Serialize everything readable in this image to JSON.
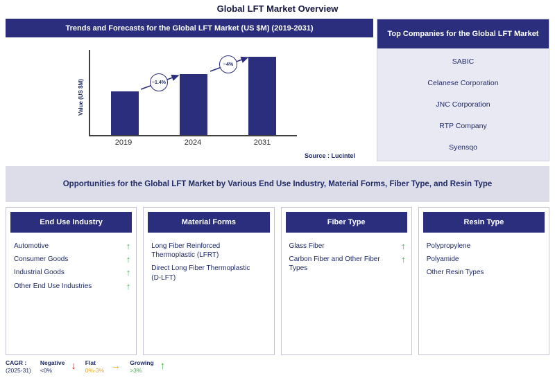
{
  "page": {
    "title": "Global LFT Market Overview",
    "source_note": "Source : Lucintel"
  },
  "colors": {
    "navy": "#2b2d7d",
    "text_navy": "#1f2a66",
    "panel_lavender": "#e9e9f4",
    "banner_gray": "#dcdde8",
    "growing_green": "#3cb44a",
    "negative_red": "#d42a1e",
    "flat_orange": "#f0a81e"
  },
  "icons": {
    "up_arrow": "↑",
    "down_arrow": "↓",
    "right_arrow": "→"
  },
  "trends_panel": {
    "header": "Trends and Forecasts for the Global LFT Market (US $M) (2019-2031)"
  },
  "chart_data": {
    "type": "bar",
    "title": "Trends and Forecasts for the Global LFT Market (US $M) (2019-2031)",
    "categories": [
      "2019",
      "2024",
      "2031"
    ],
    "values": [
      63,
      88,
      113
    ],
    "values_are_relative": true,
    "ylabel": "Value (US $M)",
    "xlabel": "",
    "grid": false,
    "bar_color": "#2b2d7d",
    "annotations": [
      {
        "between": [
          "2019",
          "2024"
        ],
        "label": "~1.4%"
      },
      {
        "between": [
          "2024",
          "2031"
        ],
        "label": "~4%"
      }
    ]
  },
  "top_companies": {
    "header": "Top Companies for the Global LFT Market",
    "companies": [
      "SABIC",
      "Celanese Corporation",
      "JNC Corporation",
      "RTP Company",
      "Syensqo"
    ]
  },
  "opportunities": {
    "banner": "Opportunities for the Global LFT Market by Various End Use Industry, Material Forms, Fiber Type, and Resin Type"
  },
  "columns": [
    {
      "header": "End Use Industry",
      "items": [
        {
          "label": "Automotive",
          "trend": "up"
        },
        {
          "label": "Consumer Goods",
          "trend": "up"
        },
        {
          "label": "Industrial Goods",
          "trend": "up"
        },
        {
          "label": "Other End Use Industries",
          "trend": "up"
        }
      ]
    },
    {
      "header": "Material Forms",
      "items": [
        {
          "label": "Long Fiber Reinforced Thermoplastic (LFRT)"
        },
        {
          "label": "Direct Long Fiber Thermoplastic (D-LFT)"
        }
      ]
    },
    {
      "header": "Fiber Type",
      "items": [
        {
          "label": "Glass Fiber",
          "trend": "up"
        },
        {
          "label": "Carbon Fiber and Other Fiber Types",
          "trend": "up"
        }
      ]
    },
    {
      "header": "Resin Type",
      "items": [
        {
          "label": "Polypropylene"
        },
        {
          "label": "Polyamide"
        },
        {
          "label": "Other Resin Types"
        }
      ]
    }
  ],
  "legend": {
    "cagr_label": "CAGR :",
    "cagr_period": "(2025-31)",
    "entries": [
      {
        "label": "Negative",
        "range": "<0%",
        "icon": "down_arrow"
      },
      {
        "label": "Flat",
        "range": "0%-3%",
        "icon": "right_arrow"
      },
      {
        "label": "Growing",
        "range": ">3%",
        "icon": "up_arrow"
      }
    ]
  }
}
